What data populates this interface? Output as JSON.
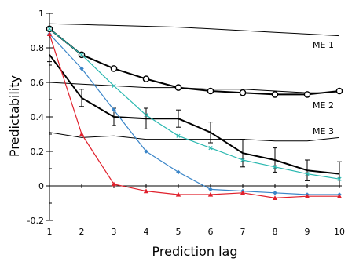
{
  "chart_data": {
    "type": "line",
    "title": "",
    "xlabel": "Prediction lag",
    "ylabel": "Predictability",
    "xlim": [
      1,
      10
    ],
    "ylim": [
      -0.2,
      1
    ],
    "x": [
      1,
      2,
      3,
      4,
      5,
      6,
      7,
      8,
      9,
      10
    ],
    "xticks": [
      1,
      2,
      3,
      4,
      5,
      6,
      7,
      8,
      9,
      10
    ],
    "yticks": [
      -0.2,
      0,
      0.2,
      0.4,
      0.6,
      0.8,
      1
    ],
    "ytick_labels": [
      "-0.2",
      "0",
      "0.2",
      "0.4",
      "0.6",
      "0.8",
      "1"
    ],
    "grid": false,
    "legend": "none",
    "series": [
      {
        "name": "ME 1",
        "color": "#000000",
        "width": 1,
        "marker": "none",
        "values": [
          0.94,
          0.935,
          0.93,
          0.925,
          0.92,
          0.91,
          0.9,
          0.89,
          0.88,
          0.87
        ]
      },
      {
        "name": "ME 2",
        "color": "#000000",
        "width": 1,
        "marker": "none",
        "values": [
          0.6,
          0.59,
          0.58,
          0.57,
          0.57,
          0.56,
          0.56,
          0.55,
          0.54,
          0.54
        ]
      },
      {
        "name": "ME 3",
        "color": "#000000",
        "width": 1,
        "marker": "none",
        "values": [
          0.31,
          0.28,
          0.29,
          0.27,
          0.27,
          0.27,
          0.27,
          0.26,
          0.26,
          0.28
        ]
      },
      {
        "color": "#000000",
        "width": 2,
        "marker": "circle",
        "values": [
          0.91,
          0.76,
          0.68,
          0.62,
          0.57,
          0.55,
          0.54,
          0.53,
          0.53,
          0.55
        ]
      },
      {
        "color": "#000000",
        "width": 2,
        "marker": "none",
        "values": [
          0.76,
          0.51,
          0.4,
          0.39,
          0.39,
          0.31,
          0.19,
          0.15,
          0.09,
          0.07
        ],
        "errors": [
          0.04,
          0.05,
          0.05,
          0.06,
          0.05,
          0.06,
          0.08,
          0.07,
          0.06,
          0.07
        ]
      },
      {
        "color": "#2ab8b0",
        "width": 1.2,
        "marker": "x",
        "values": [
          0.91,
          0.76,
          0.58,
          0.41,
          0.29,
          0.22,
          0.15,
          0.11,
          0.07,
          0.04
        ]
      },
      {
        "color": "#3a85c8",
        "width": 1.2,
        "marker": "diamond",
        "values": [
          0.88,
          0.68,
          0.44,
          0.2,
          0.08,
          -0.02,
          -0.03,
          -0.04,
          -0.05,
          -0.05
        ]
      },
      {
        "color": "#e0202c",
        "width": 1.2,
        "marker": "triangle",
        "values": [
          0.88,
          0.3,
          0.01,
          -0.03,
          -0.05,
          -0.05,
          -0.04,
          -0.07,
          -0.06,
          -0.06
        ]
      }
    ],
    "annotations": [
      {
        "text": "ME 1",
        "x": 9.5,
        "y": 0.8
      },
      {
        "text": "ME 2",
        "x": 9.5,
        "y": 0.45
      },
      {
        "text": "ME 3",
        "x": 9.5,
        "y": 0.3
      }
    ]
  }
}
